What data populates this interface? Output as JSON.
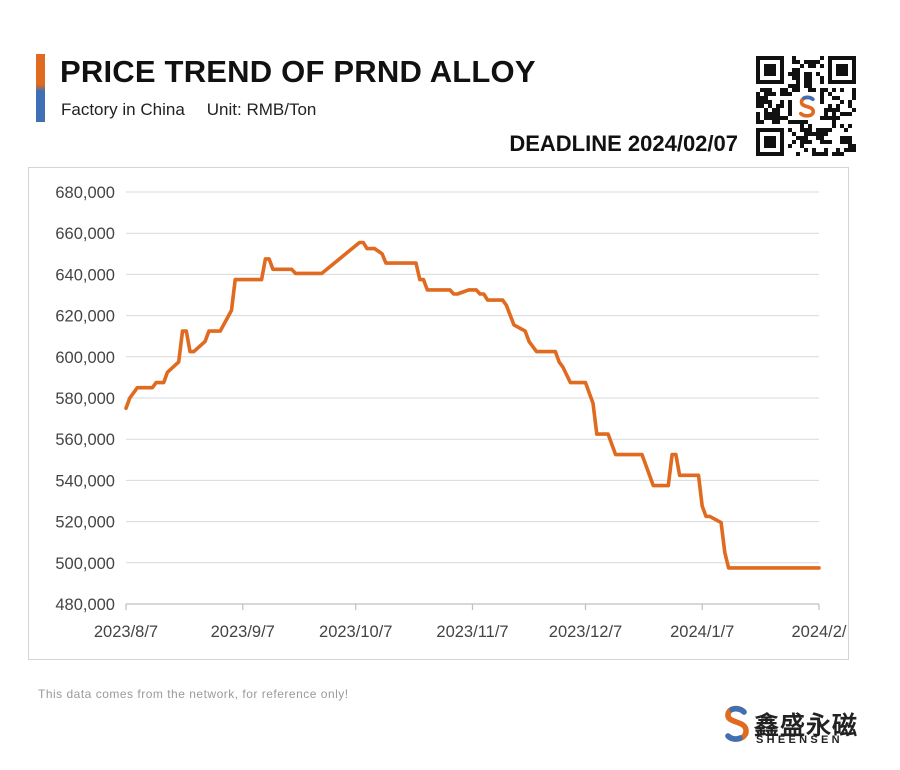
{
  "header": {
    "title": "PRICE TREND OF PRND ALLOY",
    "subtitle_location": "Factory in China",
    "subtitle_unit": "Unit: RMB/Ton",
    "deadline": "DEADLINE 2024/02/07"
  },
  "footer": {
    "disclaimer": "This data comes from the network, for reference only!",
    "brand_cn": "鑫盛永磁",
    "brand_en": "SHEENSEN"
  },
  "colors": {
    "line": "#e06a1f",
    "accent_orange": "#e06a1f",
    "accent_blue": "#3f6fb5"
  },
  "chart_data": {
    "type": "line",
    "title": "PRICE TREND OF PRND ALLOY",
    "xlabel": "",
    "ylabel": "",
    "ylim": [
      480000,
      680000
    ],
    "yticks": [
      480000,
      500000,
      520000,
      540000,
      560000,
      580000,
      600000,
      620000,
      640000,
      660000,
      680000
    ],
    "ytick_labels": [
      "480,000",
      "500,000",
      "520,000",
      "540,000",
      "560,000",
      "580,000",
      "600,000",
      "620,000",
      "640,000",
      "660,000",
      "680,000"
    ],
    "xticks": [
      "2023-08-07",
      "2023-09-07",
      "2023-10-07",
      "2023-11-07",
      "2023-12-07",
      "2024-01-07",
      "2024-02-07"
    ],
    "xtick_labels": [
      "2023/8/7",
      "2023/9/7",
      "2023/10/7",
      "2023/11/7",
      "2023/12/7",
      "2024/1/7",
      "2024/2/"
    ],
    "grid": true,
    "legend": "none",
    "series": [
      {
        "points": [
          [
            "2023-08-07",
            575000
          ],
          [
            "2023-08-08",
            580000
          ],
          [
            "2023-08-10",
            585000
          ],
          [
            "2023-08-14",
            585000
          ],
          [
            "2023-08-15",
            587500
          ],
          [
            "2023-08-17",
            587500
          ],
          [
            "2023-08-18",
            592500
          ],
          [
            "2023-08-21",
            597500
          ],
          [
            "2023-08-22",
            612500
          ],
          [
            "2023-08-23",
            612500
          ],
          [
            "2023-08-24",
            602500
          ],
          [
            "2023-08-25",
            602500
          ],
          [
            "2023-08-28",
            607500
          ],
          [
            "2023-08-29",
            612500
          ],
          [
            "2023-09-01",
            612500
          ],
          [
            "2023-09-04",
            622500
          ],
          [
            "2023-09-05",
            637500
          ],
          [
            "2023-09-12",
            637500
          ],
          [
            "2023-09-13",
            647500
          ],
          [
            "2023-09-14",
            647500
          ],
          [
            "2023-09-15",
            642500
          ],
          [
            "2023-09-20",
            642500
          ],
          [
            "2023-09-21",
            640500
          ],
          [
            "2023-09-28",
            640500
          ],
          [
            "2023-10-08",
            655500
          ],
          [
            "2023-10-09",
            655500
          ],
          [
            "2023-10-10",
            652500
          ],
          [
            "2023-10-12",
            652500
          ],
          [
            "2023-10-14",
            650000
          ],
          [
            "2023-10-15",
            645500
          ],
          [
            "2023-10-23",
            645500
          ],
          [
            "2023-10-24",
            637500
          ],
          [
            "2023-10-25",
            637500
          ],
          [
            "2023-10-26",
            632500
          ],
          [
            "2023-11-01",
            632500
          ],
          [
            "2023-11-02",
            630500
          ],
          [
            "2023-11-03",
            630500
          ],
          [
            "2023-11-06",
            632500
          ],
          [
            "2023-11-08",
            632500
          ],
          [
            "2023-11-09",
            630500
          ],
          [
            "2023-11-10",
            630500
          ],
          [
            "2023-11-11",
            627500
          ],
          [
            "2023-11-15",
            627500
          ],
          [
            "2023-11-16",
            625000
          ],
          [
            "2023-11-18",
            615500
          ],
          [
            "2023-11-21",
            612500
          ],
          [
            "2023-11-22",
            607500
          ],
          [
            "2023-11-24",
            602500
          ],
          [
            "2023-11-29",
            602500
          ],
          [
            "2023-11-30",
            597500
          ],
          [
            "2023-12-01",
            595000
          ],
          [
            "2023-12-03",
            587500
          ],
          [
            "2023-12-07",
            587500
          ],
          [
            "2023-12-09",
            577500
          ],
          [
            "2023-12-10",
            562500
          ],
          [
            "2023-12-13",
            562500
          ],
          [
            "2023-12-15",
            552500
          ],
          [
            "2023-12-22",
            552500
          ],
          [
            "2023-12-25",
            537500
          ],
          [
            "2023-12-29",
            537500
          ],
          [
            "2023-12-30",
            552500
          ],
          [
            "2023-12-31",
            552500
          ],
          [
            "2024-01-01",
            542500
          ],
          [
            "2024-01-06",
            542500
          ],
          [
            "2024-01-07",
            527500
          ],
          [
            "2024-01-08",
            522500
          ],
          [
            "2024-01-09",
            522500
          ],
          [
            "2024-01-12",
            519500
          ],
          [
            "2024-01-13",
            505000
          ],
          [
            "2024-01-14",
            497500
          ],
          [
            "2024-02-07",
            497500
          ]
        ]
      }
    ]
  }
}
